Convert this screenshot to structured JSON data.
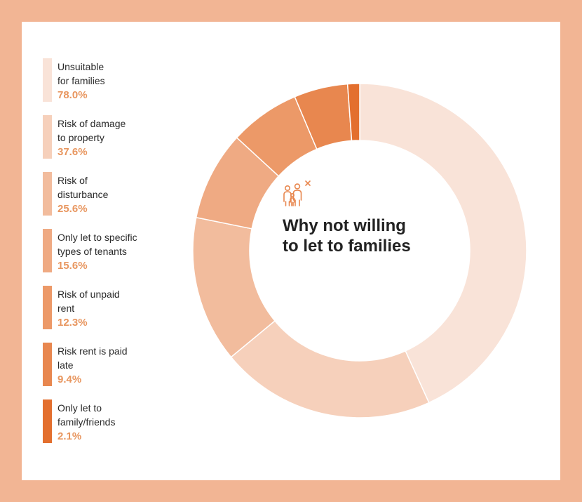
{
  "chart_data": {
    "type": "donut",
    "title": "Why not willing to let to families",
    "categories": [
      "Unsuitable for families",
      "Risk of damage to property",
      "Risk of disturbance",
      "Only let to specific types of tenants",
      "Risk of unpaid rent",
      "Risk rent is paid late",
      "Only let to family/friends"
    ],
    "labels": [
      [
        "Unsuitable",
        "for families"
      ],
      [
        "Risk of damage",
        "to property"
      ],
      [
        "Risk of",
        "disturbance"
      ],
      [
        "Only let to specific",
        "types of tenants"
      ],
      [
        "Risk of unpaid",
        "rent"
      ],
      [
        "Risk rent is paid",
        "late"
      ],
      [
        "Only let to",
        "family/friends"
      ]
    ],
    "values": [
      78.0,
      37.6,
      25.6,
      15.6,
      12.3,
      9.4,
      2.1
    ],
    "value_labels": [
      "78.0%",
      "37.6%",
      "25.6%",
      "15.6%",
      "12.3%",
      "9.4%",
      "2.1%"
    ],
    "colors": [
      "#f9e3d8",
      "#f6d0bb",
      "#f2bc9d",
      "#efaa83",
      "#ec9968",
      "#e8874f",
      "#e36f2e"
    ],
    "legend_position": "left"
  },
  "center_icon": "family-cross-icon",
  "colors": {
    "frame": "#f2b594",
    "value_text": "#e8965f",
    "title_text": "#222222"
  }
}
